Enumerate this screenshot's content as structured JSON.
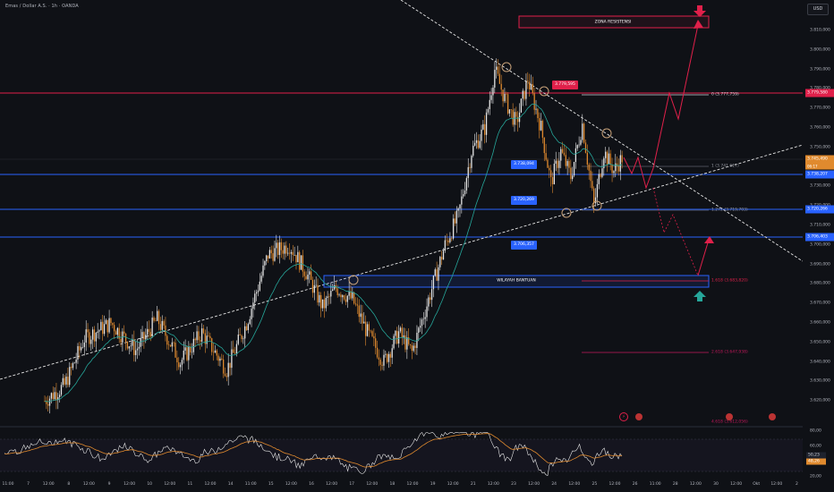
{
  "header": {
    "symbol_title": "Emas / Dollar A.S. · 1h · OANDA",
    "currency_button": "USD"
  },
  "colors": {
    "background": "#0f1116",
    "candle_up": "#e6e6e6",
    "candle_down": "#e08a2e",
    "resistance": "#e0204a",
    "support": "#2962ff",
    "ema": "#26a69a",
    "projection": "#e0204a",
    "trendline": "#e6e6e6",
    "rsi_line": "#e6e6e6",
    "rsi_ma": "#e08a2e"
  },
  "price_axis": {
    "ticks": [
      "3.810,000",
      "3.800,000",
      "3.790,000",
      "3.780,000",
      "3.770,000",
      "3.760,000",
      "3.750,000",
      "3.740,000",
      "3.730,000",
      "3.720,000",
      "3.710,000",
      "3.700,000",
      "3.690,000",
      "3.680,000",
      "3.670,000",
      "3.660,000",
      "3.650,000",
      "3.640,000",
      "3.630,000",
      "3.620,000"
    ]
  },
  "price_tags": {
    "resistance": "3.779,580",
    "current": "3.745,490",
    "current_sub": "06:17",
    "level_1": "3.738,207",
    "level_2": "3.720,266",
    "level_3": "3.706,403"
  },
  "zones": {
    "resistance_label": "ZONA RESISTENSI",
    "support_label": "WILAYAH BANTUAN"
  },
  "chart_labels": {
    "peak_price": "3.779,595",
    "blue_1": "3.738,094",
    "blue_2": "3.720,269",
    "blue_3": "3.706,357"
  },
  "fib_labels": {
    "fib_0": "0 (3.777,759)",
    "fib_1": "1 (3.741,617)",
    "fib_mid": "1.272 (3.719,703)",
    "fib_1618": "1.618 (3.683,820)",
    "fib_2618": "2.618 (3.647,938)",
    "fib_bottom": "4.618 (3.612,056)"
  },
  "time_axis": {
    "ticks": [
      "11:00",
      "7",
      "12:00",
      "8",
      "12:00",
      "9",
      "12:00",
      "10",
      "12:00",
      "11",
      "12:00",
      "14",
      "11:00",
      "15",
      "12:00",
      "16",
      "12:00",
      "17",
      "12:00",
      "18",
      "12:00",
      "19",
      "12:00",
      "21",
      "12:00",
      "23",
      "12:00",
      "24",
      "12:00",
      "25",
      "12:00",
      "26",
      "11:00",
      "28",
      "12:00",
      "30",
      "12:00",
      "Okt",
      "12:00",
      "2"
    ]
  },
  "rsi_panel": {
    "ticks": [
      "80,00",
      "60,00",
      "40,00",
      "20,00"
    ],
    "value_rsi": "50,23",
    "value_ma": "48,26"
  },
  "chart_data": {
    "type": "candlestick",
    "title": "Emas / Dollar A.S. · 1h · OANDA",
    "ylim": [
      3615,
      3815
    ],
    "candles_count": 380,
    "close_last": 3745.49,
    "key_levels": [
      3779.58,
      3738.207,
      3720.266,
      3706.403
    ],
    "resistance_zone": [
      3810,
      3814
    ],
    "support_zone": [
      3681,
      3687
    ],
    "price_path": [
      [
        0,
        3620
      ],
      [
        12,
        3628
      ],
      [
        24,
        3652
      ],
      [
        40,
        3660
      ],
      [
        55,
        3646
      ],
      [
        68,
        3662
      ],
      [
        82,
        3640
      ],
      [
        95,
        3655
      ],
      [
        110,
        3636
      ],
      [
        122,
        3660
      ],
      [
        135,
        3695
      ],
      [
        148,
        3700
      ],
      [
        158,
        3686
      ],
      [
        168,
        3668
      ],
      [
        176,
        3678
      ],
      [
        186,
        3672
      ],
      [
        195,
        3655
      ],
      [
        205,
        3640
      ],
      [
        214,
        3655
      ],
      [
        222,
        3645
      ],
      [
        232,
        3672
      ],
      [
        242,
        3700
      ],
      [
        250,
        3715
      ],
      [
        258,
        3748
      ],
      [
        266,
        3760
      ],
      [
        272,
        3790
      ],
      [
        278,
        3775
      ],
      [
        285,
        3762
      ],
      [
        292,
        3785
      ],
      [
        300,
        3760
      ],
      [
        306,
        3732
      ],
      [
        312,
        3748
      ],
      [
        318,
        3735
      ],
      [
        325,
        3762
      ],
      [
        332,
        3720
      ],
      [
        338,
        3748
      ],
      [
        344,
        3738
      ],
      [
        350,
        3746
      ]
    ],
    "rsi": {
      "ylim": [
        10,
        90
      ]
    }
  }
}
